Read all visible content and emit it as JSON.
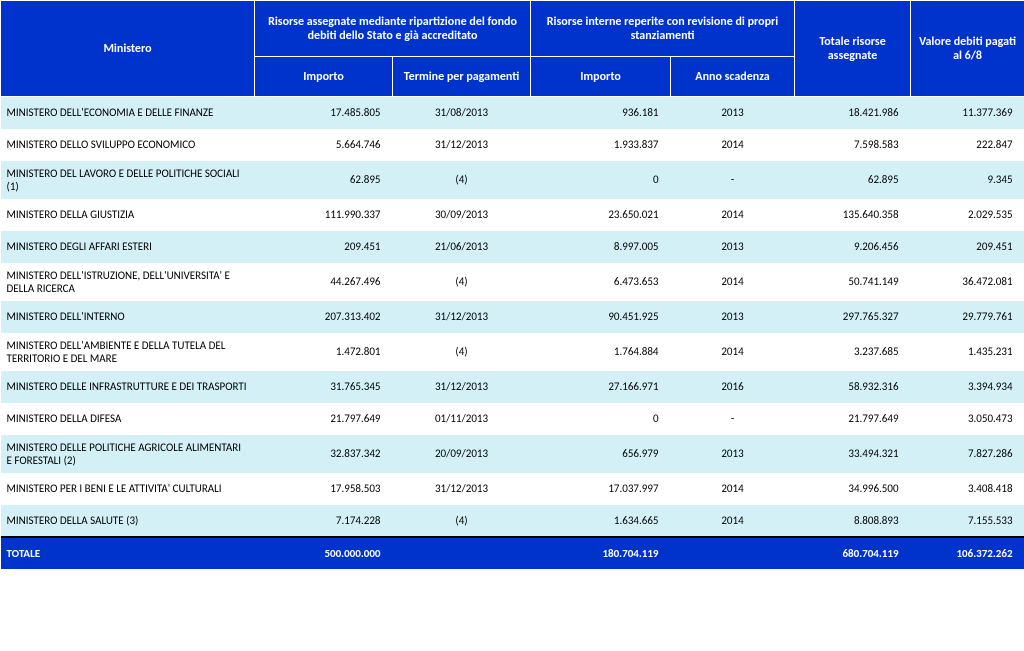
{
  "header": {
    "ministero": "Ministero",
    "group1": "Risorse assegnate mediante ripartizione del fondo debiti dello Stato e già accreditato",
    "group2": "Risorse interne reperite con revisione di propri stanziamenti",
    "totale_risorse": "Totale risorse assegnate",
    "valore_debiti": "Valore debiti pagati al 6/8",
    "importo": "Importo",
    "termine": "Termine per pagamenti",
    "anno": "Anno scadenza"
  },
  "colors": {
    "header_bg": "#0033cc",
    "header_fg": "#ffffff",
    "row_alt_bg": "#d4f0f7",
    "row_bg": "#ffffff",
    "text": "#000000"
  },
  "rows": [
    {
      "name": "MINISTERO DELL'ECONOMIA E DELLE FINANZE",
      "imp1": "17.485.805",
      "term": "31/08/2013",
      "imp2": "936.181",
      "anno": "2013",
      "tot": "18.421.986",
      "val": "11.377.369",
      "alt": true
    },
    {
      "name": "MINISTERO DELLO SVILUPPO ECONOMICO",
      "imp1": "5.664.746",
      "term": "31/12/2013",
      "imp2": "1.933.837",
      "anno": "2014",
      "tot": "7.598.583",
      "val": "222.847",
      "alt": false
    },
    {
      "name": "MINISTERO DEL LAVORO E DELLE POLITICHE SOCIALI (1)",
      "imp1": "62.895",
      "term": "(4)",
      "imp2": "0",
      "anno": "-",
      "tot": "62.895",
      "val": "9.345",
      "alt": true
    },
    {
      "name": "MINISTERO DELLA GIUSTIZIA",
      "imp1": "111.990.337",
      "term": "30/09/2013",
      "imp2": "23.650.021",
      "anno": "2014",
      "tot": "135.640.358",
      "val": "2.029.535",
      "alt": false
    },
    {
      "name": "MINISTERO DEGLI AFFARI ESTERI",
      "imp1": "209.451",
      "term": "21/06/2013",
      "imp2": "8.997.005",
      "anno": "2013",
      "tot": "9.206.456",
      "val": "209.451",
      "alt": true
    },
    {
      "name": "MINISTERO DELL'ISTRUZIONE, DELL'UNIVERSITA' E DELLA RICERCA",
      "imp1": "44.267.496",
      "term": "(4)",
      "imp2": "6.473.653",
      "anno": "2014",
      "tot": "50.741.149",
      "val": "36.472.081",
      "alt": false
    },
    {
      "name": "MINISTERO DELL'INTERNO",
      "imp1": "207.313.402",
      "term": "31/12/2013",
      "imp2": "90.451.925",
      "anno": "2013",
      "tot": "297.765.327",
      "val": "29.779.761",
      "alt": true
    },
    {
      "name": "MINISTERO DELL'AMBIENTE E DELLA TUTELA DEL TERRITORIO E DEL MARE",
      "imp1": "1.472.801",
      "term": "(4)",
      "imp2": "1.764.884",
      "anno": "2014",
      "tot": "3.237.685",
      "val": "1.435.231",
      "alt": false
    },
    {
      "name": "MINISTERO DELLE INFRASTRUTTURE E DEI TRASPORTI",
      "imp1": "31.765.345",
      "term": "31/12/2013",
      "imp2": "27.166.971",
      "anno": "2016",
      "tot": "58.932.316",
      "val": "3.394.934",
      "alt": true
    },
    {
      "name": "MINISTERO DELLA DIFESA",
      "imp1": "21.797.649",
      "term": "01/11/2013",
      "imp2": "0",
      "anno": "-",
      "tot": "21.797.649",
      "val": "3.050.473",
      "alt": false
    },
    {
      "name": "MINISTERO DELLE POLITICHE AGRICOLE ALIMENTARI E FORESTALI (2)",
      "imp1": "32.837.342",
      "term": "20/09/2013",
      "imp2": "656.979",
      "anno": "2013",
      "tot": "33.494.321",
      "val": "7.827.286",
      "alt": true
    },
    {
      "name": "MINISTERO PER I BENI E LE ATTIVITA' CULTURALI",
      "imp1": "17.958.503",
      "term": "31/12/2013",
      "imp2": "17.037.997",
      "anno": "2014",
      "tot": "34.996.500",
      "val": "3.408.418",
      "alt": false
    },
    {
      "name": "MINISTERO DELLA SALUTE (3)",
      "imp1": "7.174.228",
      "term": "(4)",
      "imp2": "1.634.665",
      "anno": "2014",
      "tot": "8.808.893",
      "val": "7.155.533",
      "alt": true
    }
  ],
  "total": {
    "label": "TOTALE",
    "imp1": "500.000.000",
    "term": "",
    "imp2": "180.704.119",
    "anno": "",
    "tot": "680.704.119",
    "val": "106.372.262"
  }
}
